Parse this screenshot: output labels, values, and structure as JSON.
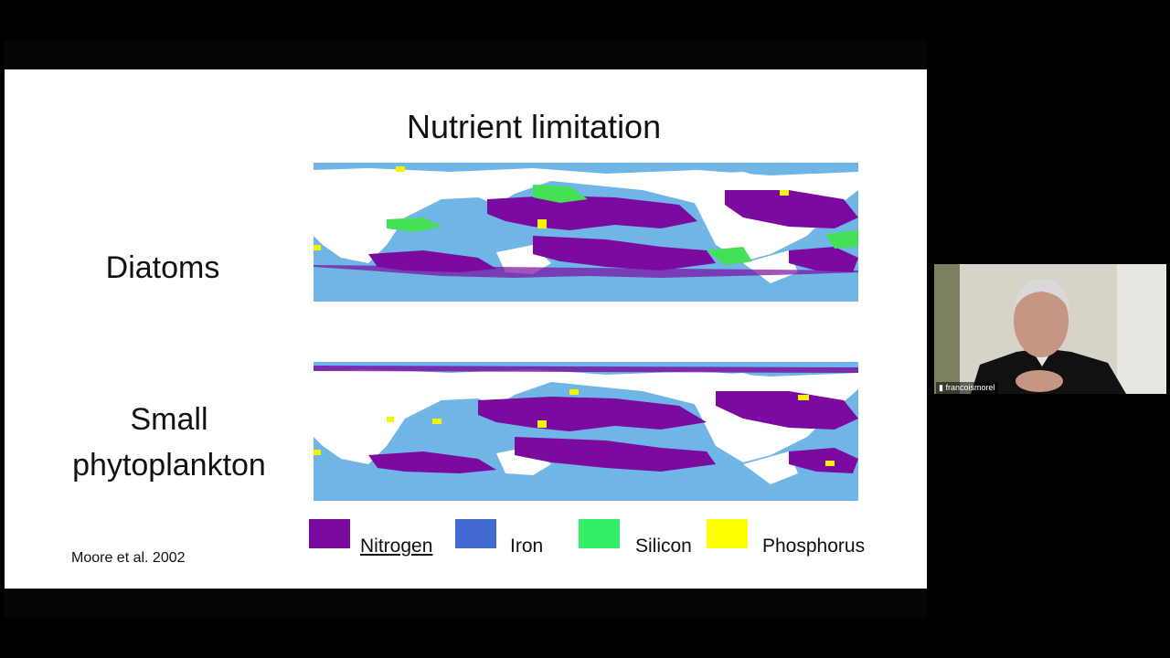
{
  "slide": {
    "title": "Nutrient limitation",
    "rows": [
      {
        "label": "Diatoms"
      },
      {
        "label_line1": "Small",
        "label_line2": "phytoplankton"
      }
    ],
    "legend": [
      {
        "label": "Nitrogen",
        "color": "#7a0aa0"
      },
      {
        "label": "Iron",
        "color": "#4169d0"
      },
      {
        "label": "Silicon",
        "color": "#33ee66"
      },
      {
        "label": "Phosphorus",
        "color": "#ffff00"
      }
    ],
    "citation": "Moore et al. 2002",
    "map_colors": {
      "ocean": "#6fb6e6",
      "land": "#ffffff",
      "nitrogen": "#7a0aa0",
      "silicon": "#44e055",
      "phosphorus": "#f4f400"
    }
  },
  "participant": {
    "name": "francoismorel"
  }
}
